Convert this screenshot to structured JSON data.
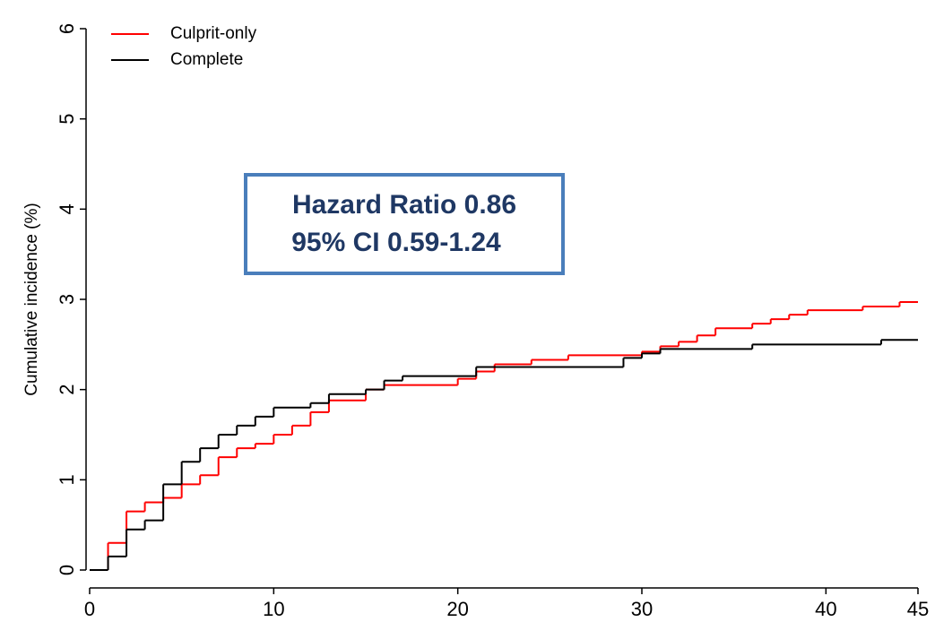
{
  "chart_data": {
    "type": "step",
    "y_label": "Cumulative incidence (%)",
    "annotation": [
      "Hazard Ratio 0.86",
      "95% CI 0.59-1.24"
    ],
    "legend": "top-left",
    "xlim": [
      0,
      45
    ],
    "xticks": [
      0,
      10,
      20,
      30,
      40,
      45
    ],
    "ylim": [
      0,
      6
    ],
    "yticks": [
      0,
      1,
      2,
      3,
      4,
      5,
      6
    ],
    "series": [
      {
        "name": "Culprit-only",
        "color": "#ff0000",
        "x": [
          1,
          2,
          3,
          4,
          5,
          6,
          7,
          8,
          9,
          10,
          11,
          12,
          13,
          15,
          16,
          20,
          21,
          22,
          24,
          26,
          30,
          31,
          32,
          33,
          34,
          36,
          37,
          38,
          39,
          42,
          44
        ],
        "values": [
          0.3,
          0.65,
          0.75,
          0.8,
          0.95,
          1.05,
          1.25,
          1.35,
          1.4,
          1.5,
          1.6,
          1.75,
          1.88,
          2.0,
          2.05,
          2.12,
          2.2,
          2.28,
          2.33,
          2.38,
          2.42,
          2.48,
          2.53,
          2.6,
          2.68,
          2.73,
          2.78,
          2.83,
          2.88,
          2.92,
          2.97
        ]
      },
      {
        "name": "Complete",
        "color": "#000000",
        "x": [
          1,
          2,
          3,
          4,
          5,
          6,
          7,
          8,
          9,
          10,
          12,
          13,
          15,
          16,
          17,
          21,
          29,
          30,
          31,
          36,
          43
        ],
        "values": [
          0.15,
          0.45,
          0.55,
          0.95,
          1.2,
          1.35,
          1.5,
          1.6,
          1.7,
          1.8,
          1.85,
          1.95,
          2.0,
          2.1,
          2.15,
          2.25,
          2.35,
          2.4,
          2.45,
          2.5,
          2.55
        ]
      }
    ]
  }
}
